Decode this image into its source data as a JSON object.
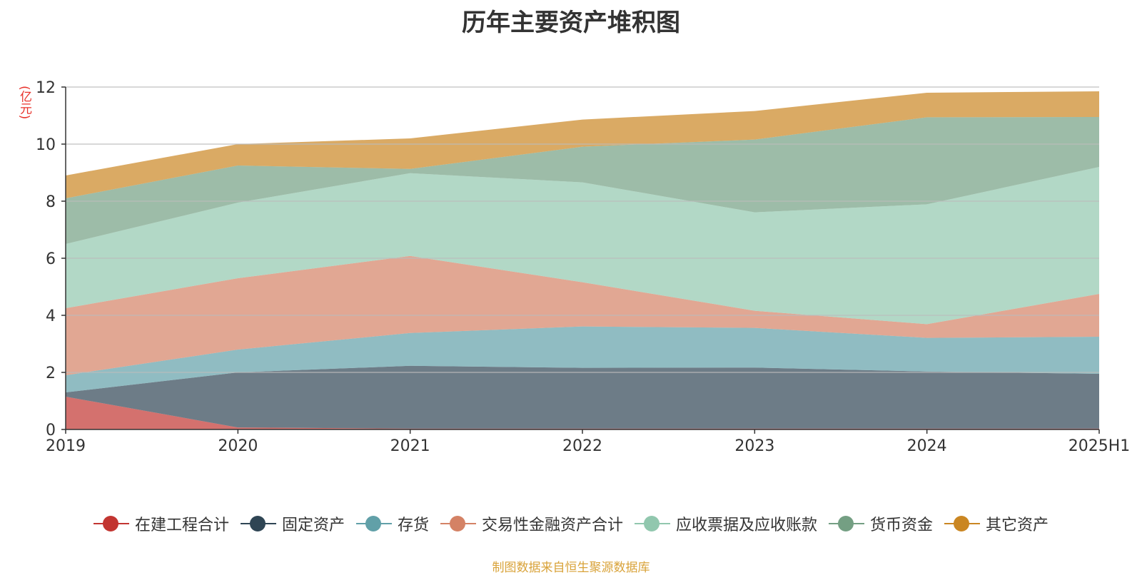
{
  "chart_data": {
    "type": "area",
    "stacked": true,
    "title": "历年主要资产堆积图",
    "unit": "(亿元)",
    "categories": [
      "2019",
      "2020",
      "2021",
      "2022",
      "2023",
      "2024",
      "2025H1"
    ],
    "ylim": [
      0,
      12
    ],
    "yticks": [
      0,
      2,
      4,
      6,
      8,
      10,
      12
    ],
    "grid": true,
    "legend_position": "bottom",
    "source": "制图数据来自恒生聚源数据库",
    "series": [
      {
        "name": "在建工程合计",
        "color": "#c23531",
        "values": [
          1.15,
          0.07,
          0.03,
          0.03,
          0.03,
          0.03,
          0.03
        ]
      },
      {
        "name": "固定资产",
        "color": "#2f4554",
        "values": [
          0.15,
          1.93,
          2.2,
          2.13,
          2.14,
          2.0,
          1.92
        ]
      },
      {
        "name": "存货",
        "color": "#61a0a8",
        "values": [
          0.6,
          0.8,
          1.15,
          1.45,
          1.39,
          1.18,
          1.3
        ]
      },
      {
        "name": "交易性金融资产合计",
        "color": "#d48265",
        "values": [
          2.35,
          2.5,
          2.7,
          1.55,
          0.6,
          0.48,
          1.5
        ]
      },
      {
        "name": "应收票据及应收账款",
        "color": "#91c7ae",
        "values": [
          2.25,
          2.65,
          2.9,
          3.5,
          3.45,
          4.2,
          4.45
        ]
      },
      {
        "name": "货币资金",
        "color": "#749f83",
        "values": [
          1.6,
          1.3,
          0.15,
          1.25,
          2.55,
          3.05,
          1.75
        ]
      },
      {
        "name": "其它资产",
        "color": "#ca8622",
        "values": [
          0.8,
          0.75,
          1.07,
          0.95,
          1.0,
          0.86,
          0.9
        ]
      }
    ]
  }
}
